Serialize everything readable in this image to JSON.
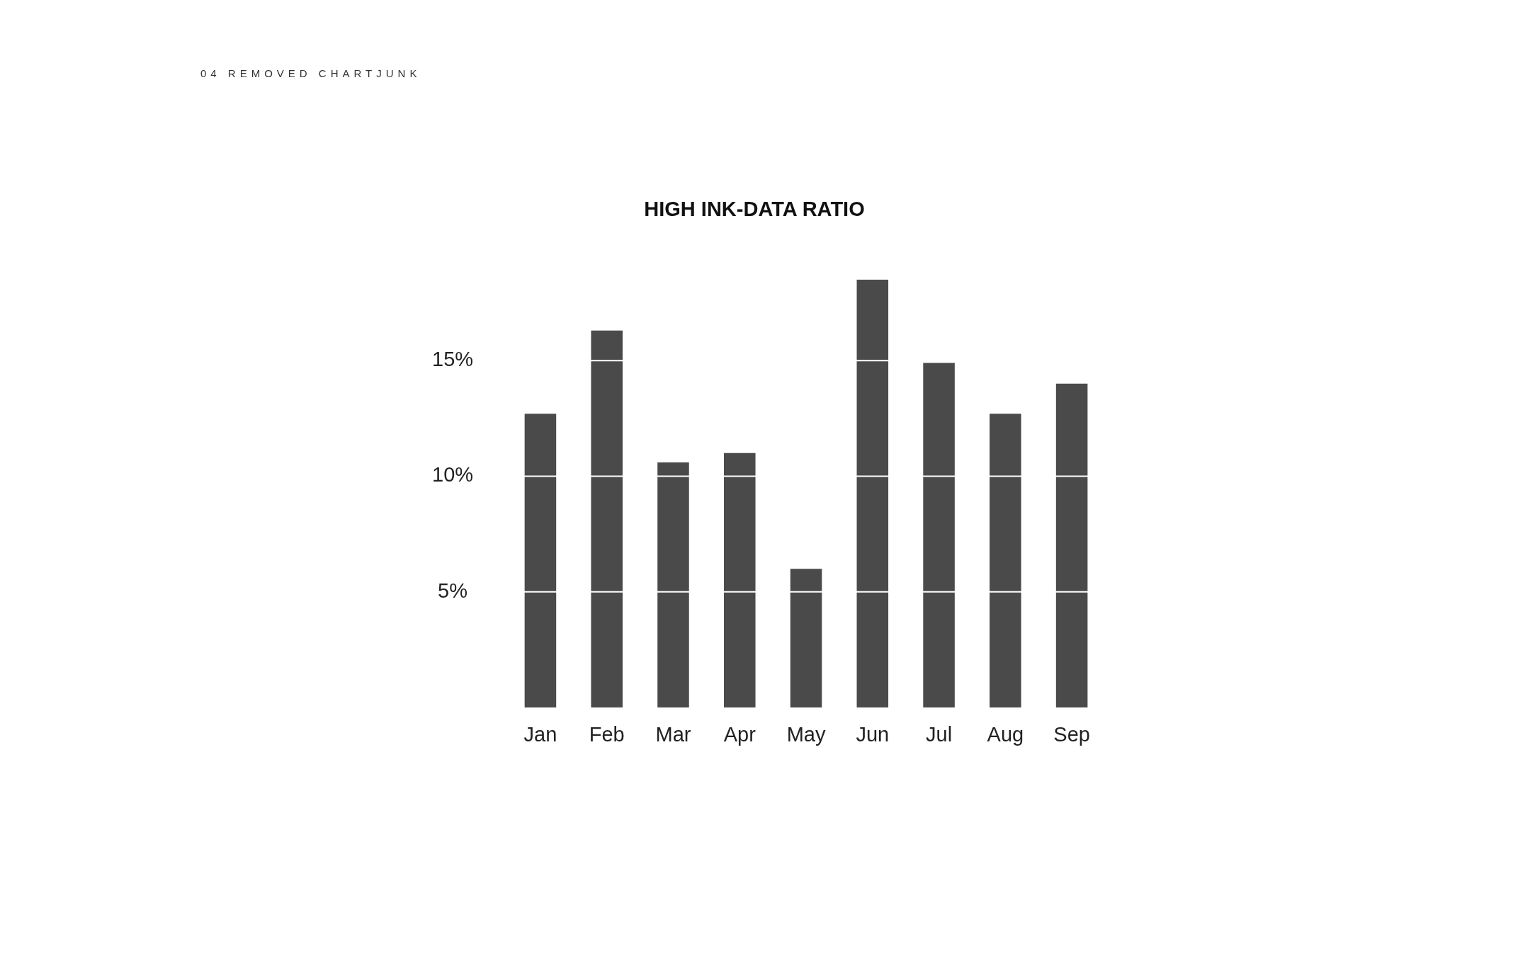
{
  "chart_data": {
    "type": "bar",
    "title": "HIGH INK-DATA RATIO",
    "annotations": [
      "04 REMOVED CHARTJUNK"
    ],
    "categories": [
      "Jan",
      "Feb",
      "Mar",
      "Apr",
      "May",
      "Jun",
      "Jul",
      "Aug",
      "Sep"
    ],
    "values": [
      12.7,
      16.3,
      10.6,
      11.0,
      6.0,
      18.5,
      14.9,
      12.7,
      14.0
    ],
    "color": "#4a4a4a",
    "ylim": [
      0,
      18.5
    ],
    "yticks": [
      {
        "value": 5,
        "label": "5%"
      },
      {
        "value": 10,
        "label": "10%"
      },
      {
        "value": 15,
        "label": "15%"
      }
    ],
    "grid": "y"
  }
}
